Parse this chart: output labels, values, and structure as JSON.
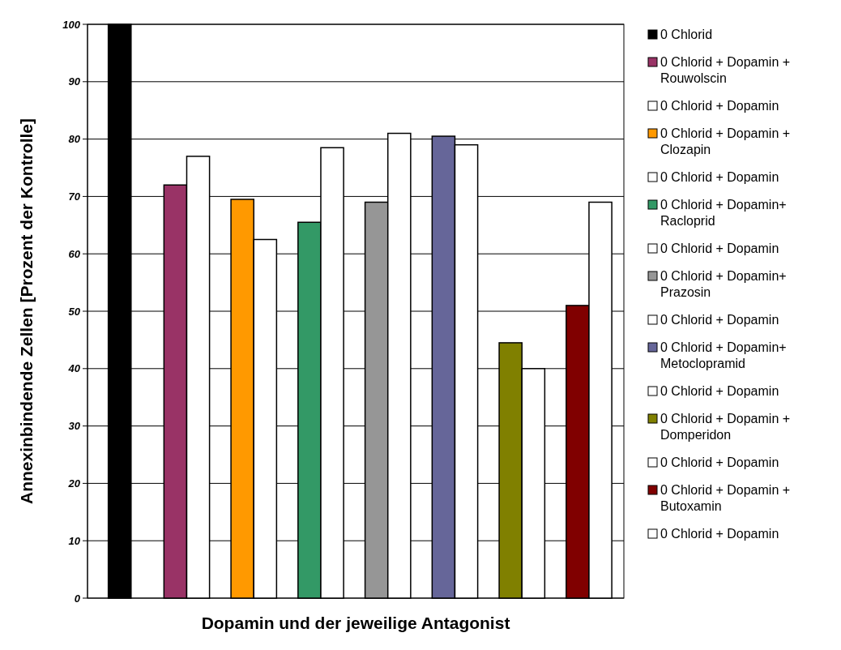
{
  "chart_data": {
    "type": "bar",
    "xlabel": "Dopamin und der jeweilige Antagonist",
    "ylabel": "Annexinbindende Zellen [Prozent der Kontrolle]",
    "categories": [
      null
    ],
    "ylim": [
      0,
      100
    ],
    "yticks": [
      0,
      10,
      20,
      30,
      40,
      50,
      60,
      70,
      80,
      90,
      100
    ],
    "grid": "y",
    "legend": "right",
    "series": [
      {
        "name": "0 Chlorid",
        "color": "#000000",
        "values": [
          100
        ]
      },
      {
        "name": "0 Chlorid + Dopamin + Rouwolscin",
        "color": "#993366",
        "values": [
          72
        ]
      },
      {
        "name": "0 Chlorid + Dopamin",
        "color": "#ffffff",
        "values": [
          77
        ]
      },
      {
        "name": "0 Chlorid + Dopamin + Clozapin",
        "color": "#ff9900",
        "values": [
          69.5
        ]
      },
      {
        "name": "0 Chlorid + Dopamin",
        "color": "#ffffff",
        "values": [
          62.5
        ]
      },
      {
        "name": "0 Chlorid + Dopamin+ Racloprid",
        "color": "#339966",
        "values": [
          65.5
        ]
      },
      {
        "name": "0 Chlorid + Dopamin",
        "color": "#ffffff",
        "values": [
          78.5
        ]
      },
      {
        "name": "0 Chlorid + Dopamin+ Prazosin",
        "color": "#969696",
        "values": [
          69
        ]
      },
      {
        "name": "0 Chlorid + Dopamin",
        "color": "#ffffff",
        "values": [
          81
        ]
      },
      {
        "name": "0 Chlorid + Dopamin+ Metoclopramid",
        "color": "#666699",
        "values": [
          80.5
        ]
      },
      {
        "name": "0 Chlorid + Dopamin",
        "color": "#ffffff",
        "values": [
          79
        ]
      },
      {
        "name": "0 Chlorid + Dopamin + Domperidon",
        "color": "#808000",
        "values": [
          44.5
        ]
      },
      {
        "name": "0 Chlorid + Dopamin",
        "color": "#ffffff",
        "values": [
          40
        ]
      },
      {
        "name": "0 Chlorid + Dopamin + Butoxamin",
        "color": "#800000",
        "values": [
          51
        ]
      },
      {
        "name": "0 Chlorid + Dopamin",
        "color": "#ffffff",
        "values": [
          69
        ]
      }
    ]
  }
}
